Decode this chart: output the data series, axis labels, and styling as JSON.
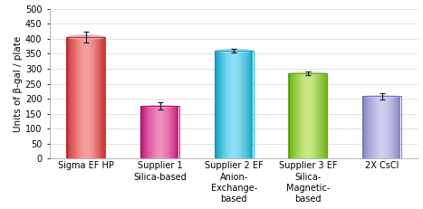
{
  "categories": [
    "Sigma EF HP",
    "Supplier 1\nSilica-based",
    "Supplier 2 EF\nAnion-\nExchange-\nbased",
    "Supplier 3 EF\nSilica-\nMagnetic-\nbased",
    "2X CsCl"
  ],
  "values": [
    405,
    175,
    360,
    285,
    208
  ],
  "errors": [
    18,
    12,
    7,
    7,
    10
  ],
  "bar_colors_main": [
    "#f06060",
    "#e83090",
    "#30c8e8",
    "#90d040",
    "#a8a8e0"
  ],
  "bar_colors_light": [
    "#f8a0a0",
    "#f090c0",
    "#90e0f8",
    "#c8e888",
    "#d0d0f0"
  ],
  "bar_colors_dark": [
    "#c83030",
    "#c01070",
    "#08a0c0",
    "#68b010",
    "#8080c0"
  ],
  "bar_colors_edge": [
    "#b02020",
    "#a00060",
    "#0090b0",
    "#509000",
    "#6060b0"
  ],
  "ylabel": "Units of β-gal / plate",
  "ylim": [
    0,
    500
  ],
  "yticks": [
    0,
    50,
    100,
    150,
    200,
    250,
    300,
    350,
    400,
    450,
    500
  ],
  "background_color": "#ffffff",
  "grid_color": "#dddddd",
  "tick_fontsize": 7,
  "label_fontsize": 7.5
}
